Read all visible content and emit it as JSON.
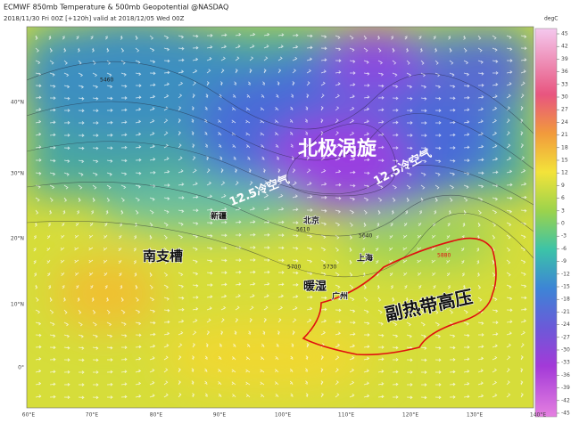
{
  "header": {
    "title": "ECMWF 850mb Temperature & 500mb Geopotential @NASDAQ",
    "subtitle": "2018/11/30 Fri 00Z [+120h] valid at 2018/12/05 Wed 00Z"
  },
  "colorbar": {
    "unit": "degC",
    "ticks": [
      45,
      42,
      39,
      36,
      33,
      30,
      27,
      24,
      21,
      18,
      15,
      12,
      9,
      6,
      3,
      0,
      -3,
      -6,
      -9,
      -12,
      -15,
      -18,
      -21,
      -24,
      -27,
      -30,
      -33,
      -36,
      -39,
      -42,
      -45
    ]
  },
  "latitude_labels": [
    "40°N",
    "30°N",
    "20°N",
    "10°N",
    "0°"
  ],
  "longitude_labels": [
    "60°E",
    "70°E",
    "80°E",
    "90°E",
    "100°E",
    "110°E",
    "120°E",
    "130°E",
    "140°E"
  ],
  "annotations": [
    "北极涡旋",
    "12.5冷空气",
    "12.5冷空气",
    "新疆",
    "北京",
    "南支槽",
    "上海",
    "暖湿",
    "广州",
    "副热带高压"
  ],
  "contour_labels": [
    "5460",
    "5610",
    "5640",
    "5700",
    "5730",
    "5880"
  ]
}
